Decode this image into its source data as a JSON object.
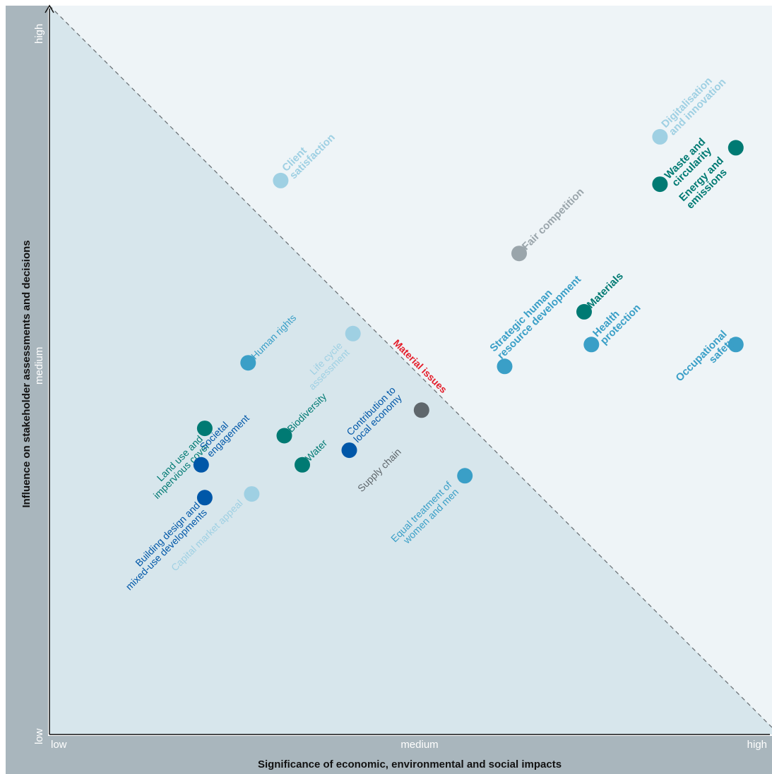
{
  "chart_data": {
    "type": "scatter",
    "title": "",
    "xlabel": "Significance of economic, environmental and social impacts",
    "ylabel": "Influence on stakeholder assessments and decisions",
    "xlim": [
      0,
      100
    ],
    "ylim": [
      0,
      100
    ],
    "x_ticks": [
      "low",
      "medium",
      "high"
    ],
    "y_ticks": [
      "low",
      "medium",
      "high"
    ],
    "threshold_label": "Material issues",
    "colors": {
      "teal": "#007a73",
      "blue": "#0057a8",
      "mid_blue": "#3a9fc7",
      "light_blue": "#9fd0e3",
      "grey": "#9aa5ab",
      "dark_grey": "#5f676c",
      "accent_red": "#e41e2b",
      "panel": "#a9b6bd",
      "region_below": "#d7e6ec",
      "region_above": "#eef4f7"
    },
    "points": [
      {
        "label": [
          "Client",
          "satisfaction"
        ],
        "x": 32,
        "y": 76,
        "color": "light_blue",
        "bold": true,
        "material": true,
        "angle": -45,
        "anchor": "start",
        "dx": 8,
        "dy": -12
      },
      {
        "label": [
          "Digitalisation",
          "and innovation"
        ],
        "x": 84.5,
        "y": 82,
        "color": "light_blue",
        "bold": true,
        "material": true,
        "angle": -45,
        "anchor": "start",
        "dx": 8,
        "dy": -12
      },
      {
        "label": [
          "Waste and",
          "circularity"
        ],
        "x": 95,
        "y": 80.5,
        "color": "teal",
        "bold": true,
        "material": true,
        "angle": -45,
        "anchor": "start",
        "dx": -95,
        "dy": 45
      },
      {
        "label": [
          "Energy and",
          "emissions"
        ],
        "x": 84.5,
        "y": 75.5,
        "color": "teal",
        "bold": true,
        "material": true,
        "angle": -45,
        "anchor": "start",
        "dx": 33,
        "dy": 25
      },
      {
        "label": [
          "Fair competition"
        ],
        "x": 65,
        "y": 66,
        "color": "grey",
        "bold": true,
        "material": true,
        "angle": -45,
        "anchor": "start",
        "dx": 10,
        "dy": -4
      },
      {
        "label": [
          "Materials"
        ],
        "x": 74,
        "y": 58,
        "color": "teal",
        "bold": true,
        "material": true,
        "angle": -45,
        "anchor": "start",
        "dx": 10,
        "dy": -4
      },
      {
        "label": [
          "Strategic human",
          "resource development"
        ],
        "x": 63,
        "y": 50.5,
        "color": "mid_blue",
        "bold": true,
        "material": true,
        "angle": -45,
        "anchor": "start",
        "dx": -15,
        "dy": -20
      },
      {
        "label": [
          "Health",
          "protection"
        ],
        "x": 75,
        "y": 53.5,
        "color": "mid_blue",
        "bold": true,
        "material": true,
        "angle": -45,
        "anchor": "start",
        "dx": 8,
        "dy": -10
      },
      {
        "label": [
          "Occupational",
          "safety"
        ],
        "x": 95,
        "y": 53.5,
        "color": "mid_blue",
        "bold": true,
        "material": true,
        "angle": -45,
        "anchor": "end",
        "dx": -12,
        "dy": -14
      },
      {
        "label": [
          "Human rights"
        ],
        "x": 27.5,
        "y": 51,
        "color": "mid_blue",
        "bold": false,
        "material": false,
        "angle": -45,
        "anchor": "start",
        "dx": 10,
        "dy": -4
      },
      {
        "label": [
          "Life cycle",
          "assessment"
        ],
        "x": 42,
        "y": 55,
        "color": "light_blue",
        "bold": false,
        "material": false,
        "angle": -45,
        "anchor": "end",
        "dx": -14,
        "dy": 18
      },
      {
        "label": [
          "Biodiversity"
        ],
        "x": 32.5,
        "y": 41,
        "color": "teal",
        "bold": false,
        "material": false,
        "angle": -45,
        "anchor": "start",
        "dx": 10,
        "dy": -4
      },
      {
        "label": [
          "Land use and",
          "impervious cover"
        ],
        "x": 21.5,
        "y": 42,
        "color": "teal",
        "bold": false,
        "material": false,
        "angle": -45,
        "anchor": "end",
        "dx": -2,
        "dy": 16
      },
      {
        "label": [
          "Societal",
          "engagement"
        ],
        "x": 21,
        "y": 37,
        "color": "blue",
        "bold": false,
        "material": false,
        "angle": -45,
        "anchor": "start",
        "dx": 4,
        "dy": -20
      },
      {
        "label": [
          "Water"
        ],
        "x": 35,
        "y": 37,
        "color": "teal",
        "bold": false,
        "material": false,
        "angle": -45,
        "anchor": "start",
        "dx": 10,
        "dy": -4
      },
      {
        "label": [
          "Contribution to",
          "local economy"
        ],
        "x": 41.5,
        "y": 39,
        "color": "blue",
        "bold": false,
        "material": false,
        "angle": -45,
        "anchor": "start",
        "dx": 2,
        "dy": -20
      },
      {
        "label": [
          "Supply chain"
        ],
        "x": 51.5,
        "y": 44.5,
        "color": "dark_grey",
        "bold": false,
        "material": false,
        "angle": -45,
        "anchor": "end",
        "dx": -28,
        "dy": 60
      },
      {
        "label": [
          "Equal treatment of",
          "women and men"
        ],
        "x": 57.5,
        "y": 35.5,
        "color": "mid_blue",
        "bold": false,
        "material": false,
        "angle": -45,
        "anchor": "end",
        "dx": -18,
        "dy": 14
      },
      {
        "label": [
          "Building design and",
          "mixed-use developments"
        ],
        "x": 21.5,
        "y": 32.5,
        "color": "blue",
        "bold": false,
        "material": false,
        "angle": -45,
        "anchor": "end",
        "dx": -6,
        "dy": 12
      },
      {
        "label": [
          "Capital market appeal"
        ],
        "x": 28,
        "y": 33,
        "color": "light_blue",
        "bold": false,
        "material": false,
        "angle": -45,
        "anchor": "end",
        "dx": -12,
        "dy": 14
      }
    ]
  }
}
